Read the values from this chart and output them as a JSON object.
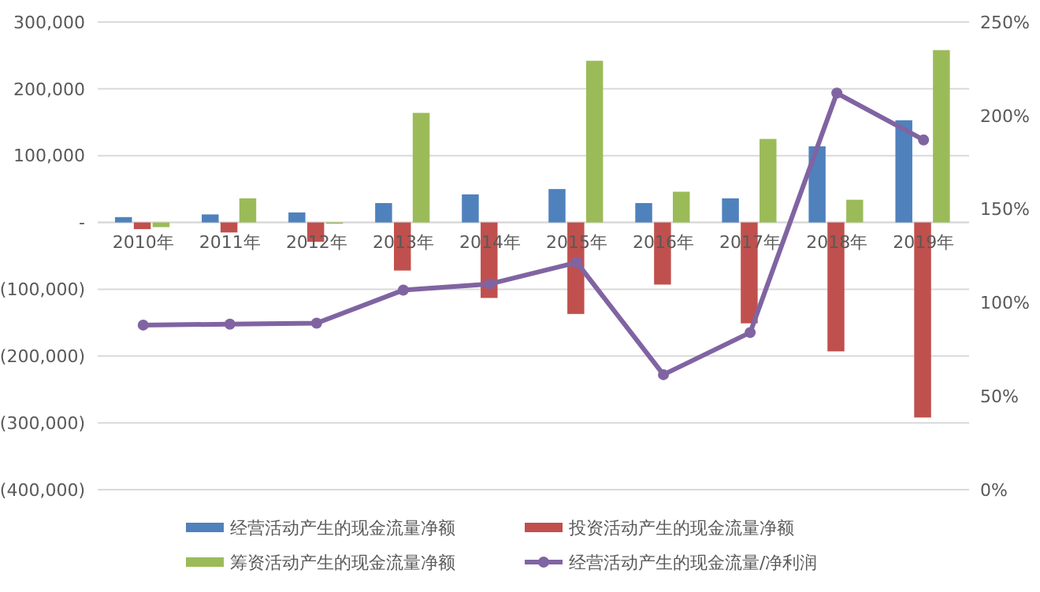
{
  "chart_data": {
    "type": "bar",
    "categories": [
      "2010年",
      "2011年",
      "2012年",
      "2013年",
      "2014年",
      "2015年",
      "2016年",
      "2017年",
      "2018年",
      "2019年"
    ],
    "series": [
      {
        "name": "经营活动产生的现金流量净额",
        "color": "#4f81bd",
        "values": [
          8000,
          12000,
          15000,
          29000,
          42000,
          50000,
          29000,
          36000,
          114000,
          153000
        ]
      },
      {
        "name": "投资活动产生的现金流量净额",
        "color": "#c0504d",
        "values": [
          -10000,
          -15000,
          -29000,
          -72000,
          -113000,
          -137000,
          -93000,
          -151000,
          -193000,
          -292000
        ]
      },
      {
        "name": "筹资活动产生的现金流量净额",
        "color": "#9bbb59",
        "values": [
          -7000,
          36000,
          -2000,
          164000,
          0,
          242000,
          46000,
          125000,
          34000,
          258000
        ]
      },
      {
        "name": "经营活动产生的现金流量/净利润",
        "color": "#8064a2",
        "type": "line",
        "axis": "y2",
        "marker": "circle",
        "values": [
          88,
          88.5,
          89,
          106.7,
          110,
          121.5,
          61.5,
          84,
          212,
          187
        ]
      }
    ],
    "ylim": [
      -400000,
      300000
    ],
    "yticks": [
      {
        "value": -400000,
        "label": "(400,000)"
      },
      {
        "value": -300000,
        "label": "(300,000)"
      },
      {
        "value": -200000,
        "label": "(200,000)"
      },
      {
        "value": -100000,
        "label": "(100,000)"
      },
      {
        "value": 0,
        "label": "-"
      },
      {
        "value": 100000,
        "label": "100,000"
      },
      {
        "value": 200000,
        "label": "200,000"
      },
      {
        "value": 300000,
        "label": "300,000"
      }
    ],
    "y2lim": [
      0,
      250
    ],
    "y2ticks": [
      {
        "value": 0,
        "label": "0%"
      },
      {
        "value": 50,
        "label": "50%"
      },
      {
        "value": 100,
        "label": "100%"
      },
      {
        "value": 150,
        "label": "150%"
      },
      {
        "value": 200,
        "label": "200%"
      },
      {
        "value": 250,
        "label": "250%"
      }
    ],
    "grid": "y",
    "legend": "bottom"
  }
}
